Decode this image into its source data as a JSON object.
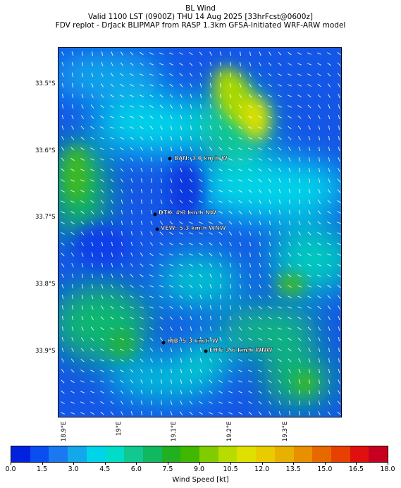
{
  "header": {
    "title": "BL Wind",
    "valid": "Valid 1100 LST (0900Z) THU 14 Aug 2025 [33hrFcst@0600z]",
    "source": "FDV replot - DrJack BLIPMAP from RASP 1.3km GFSA-Initiated WRF-ARW model"
  },
  "axes": {
    "lat_labels": [
      "33.5°S",
      "33.6°S",
      "33.7°S",
      "33.8°S",
      "33.9°S"
    ],
    "lon_labels": [
      "18.9°E",
      "19°E",
      "19.1°E",
      "19.2°E",
      "19.3°E"
    ]
  },
  "stations": [
    {
      "code": "BAN",
      "label": "BAN: 3.0 km/h W"
    },
    {
      "code": "DTK",
      "label": "DTK: 4.8 km/h NW"
    },
    {
      "code": "VEW",
      "label": "VEW: 5.3 km/h WNW"
    },
    {
      "code": "HJB",
      "label": "HJB: 5.3 km/h W"
    },
    {
      "code": "FHT",
      "label": "FHT: 3.6 km/h WNW"
    }
  ],
  "colorbar": {
    "label": "Wind Speed [kt]",
    "ticks": [
      "0.0",
      "1.5",
      "3.0",
      "4.5",
      "6.0",
      "7.5",
      "9.0",
      "10.5",
      "12.0",
      "13.5",
      "15.0",
      "16.5",
      "18.0"
    ],
    "colors": [
      "#0022e0",
      "#0a4df0",
      "#1a78f0",
      "#12a8ea",
      "#00d4e8",
      "#00dcc8",
      "#10c890",
      "#10b860",
      "#20b020",
      "#40b800",
      "#80cc00",
      "#b8dc00",
      "#e0e000",
      "#e8cc00",
      "#e8b000",
      "#e89000",
      "#e86800",
      "#e84000",
      "#e01010",
      "#c80020"
    ]
  }
}
